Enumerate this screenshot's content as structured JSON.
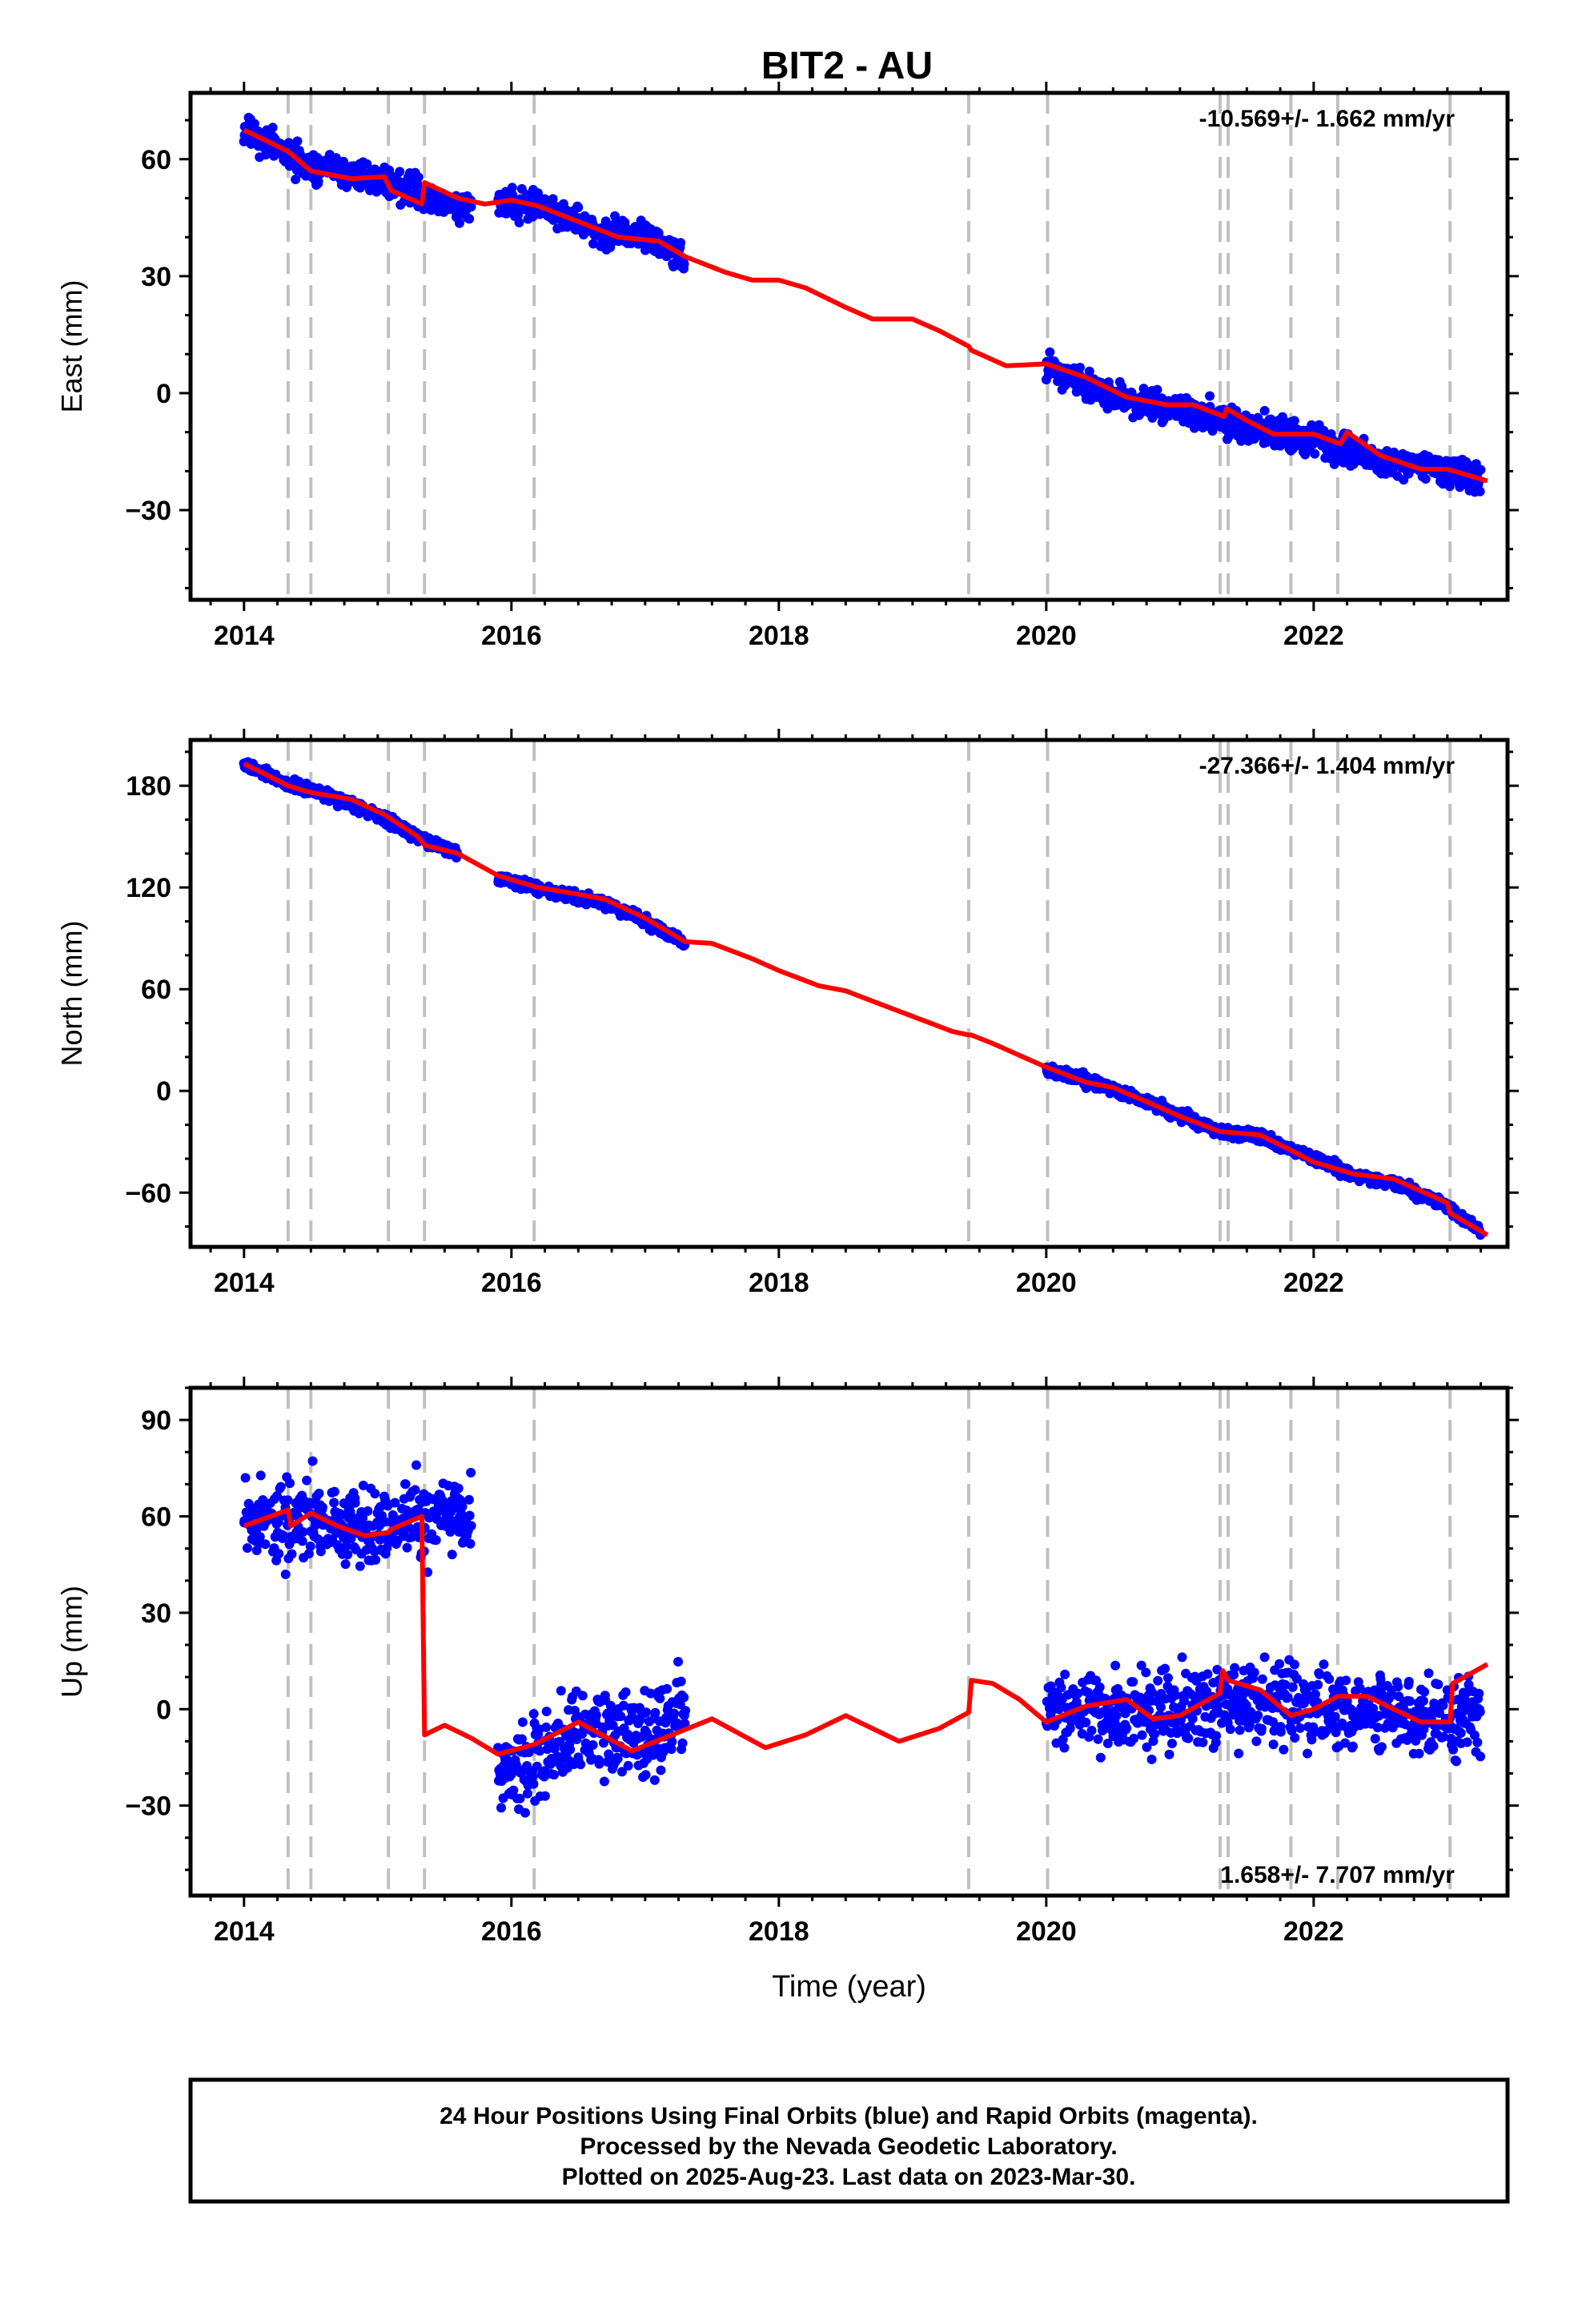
{
  "page": {
    "title": "BIT2 - AU",
    "footer_lines": [
      "24 Hour Positions Using Final Orbits (blue) and Rapid Orbits (magenta).",
      "Processed by the Nevada Geodetic Laboratory.",
      "Plotted on 2025-Aug-23. Last data on 2023-Mar-30."
    ]
  },
  "colors": {
    "observations": "#0000ff",
    "model": "#ff0000",
    "event_lines": "#c0c0c0",
    "frame": "#000000"
  },
  "chart_data": [
    {
      "type": "scatter",
      "ylabel": "East (mm)",
      "xlabel": "",
      "rate_label": "-10.569+/- 1.662 mm/yr",
      "rate_placement": "top-right",
      "xlim": [
        2013.6,
        2023.45
      ],
      "ylim": [
        -53,
        77
      ],
      "xticks": [
        2014,
        2016,
        2018,
        2020,
        2022
      ],
      "yticks": [
        -30,
        0,
        30,
        60
      ],
      "data_segments": [
        [
          2014.0,
          2015.7
        ],
        [
          2015.9,
          2017.3
        ],
        [
          2020.0,
          2023.25
        ]
      ],
      "series": [
        {
          "kind": "observations",
          "trend": [
            [
              2014.0,
              67.5
            ],
            [
              2014.5,
              58
            ],
            [
              2015.0,
              55
            ],
            [
              2015.35,
              51
            ],
            [
              2015.7,
              47
            ],
            [
              2015.9,
              49
            ],
            [
              2016.2,
              48
            ],
            [
              2016.7,
              41
            ],
            [
              2017.0,
              40
            ],
            [
              2017.3,
              35
            ],
            [
              2020.0,
              7
            ],
            [
              2020.5,
              -1
            ],
            [
              2021.0,
              -4
            ],
            [
              2021.5,
              -9
            ],
            [
              2022.0,
              -12
            ],
            [
              2022.5,
              -17
            ],
            [
              2023.25,
              -21
            ]
          ],
          "scatter_mm": 3.5
        },
        {
          "kind": "model",
          "points": [
            [
              2014.0,
              67.5
            ],
            [
              2014.33,
              62
            ],
            [
              2014.5,
              57
            ],
            [
              2014.8,
              55
            ],
            [
              2015.05,
              55.5
            ],
            [
              2015.1,
              52
            ],
            [
              2015.33,
              48.5
            ],
            [
              2015.35,
              54
            ],
            [
              2015.6,
              50
            ],
            [
              2015.8,
              48.5
            ],
            [
              2016.0,
              49.5
            ],
            [
              2016.2,
              48
            ],
            [
              2016.5,
              44
            ],
            [
              2016.8,
              40
            ],
            [
              2017.1,
              39
            ],
            [
              2017.3,
              35
            ],
            [
              2017.6,
              31
            ],
            [
              2017.8,
              29
            ],
            [
              2018.0,
              29
            ],
            [
              2018.2,
              27
            ],
            [
              2018.5,
              22
            ],
            [
              2018.7,
              19
            ],
            [
              2019.0,
              19
            ],
            [
              2019.2,
              16
            ],
            [
              2019.42,
              12
            ],
            [
              2019.44,
              11
            ],
            [
              2019.7,
              7
            ],
            [
              2020.0,
              7.5
            ],
            [
              2020.3,
              4
            ],
            [
              2020.6,
              -1
            ],
            [
              2020.9,
              -3
            ],
            [
              2021.1,
              -3
            ],
            [
              2021.33,
              -6
            ],
            [
              2021.35,
              -4
            ],
            [
              2021.5,
              -7
            ],
            [
              2021.7,
              -10.5
            ],
            [
              2022.0,
              -10.5
            ],
            [
              2022.2,
              -13
            ],
            [
              2022.25,
              -10
            ],
            [
              2022.5,
              -16
            ],
            [
              2022.8,
              -19.5
            ],
            [
              2023.0,
              -19.5
            ],
            [
              2023.3,
              -22.5
            ]
          ]
        }
      ],
      "event_lines": [
        2014.33,
        2014.5,
        2015.08,
        2015.35,
        2016.17,
        2019.42,
        2020.01,
        2021.3,
        2021.36,
        2021.83,
        2022.18,
        2023.02
      ]
    },
    {
      "type": "scatter",
      "ylabel": "North (mm)",
      "xlabel": "",
      "rate_label": "-27.366+/- 1.404 mm/yr",
      "rate_placement": "top-right",
      "xlim": [
        2013.6,
        2023.45
      ],
      "ylim": [
        -92,
        207
      ],
      "xticks": [
        2014,
        2016,
        2018,
        2020,
        2022
      ],
      "yticks": [
        -60,
        0,
        60,
        120,
        180
      ],
      "data_segments": [
        [
          2014.0,
          2015.6
        ],
        [
          2015.9,
          2017.3
        ],
        [
          2020.0,
          2023.25
        ]
      ],
      "series": [
        {
          "kind": "observations",
          "trend": [
            [
              2014.0,
              193
            ],
            [
              2014.3,
              182
            ],
            [
              2014.6,
              175
            ],
            [
              2015.0,
              163
            ],
            [
              2015.3,
              150
            ],
            [
              2015.6,
              140
            ],
            [
              2015.9,
              125
            ],
            [
              2016.3,
              117
            ],
            [
              2016.7,
              111
            ],
            [
              2017.0,
              100
            ],
            [
              2017.3,
              87
            ],
            [
              2020.0,
              13
            ],
            [
              2020.5,
              1
            ],
            [
              2021.0,
              -14
            ],
            [
              2021.3,
              -24
            ],
            [
              2021.6,
              -27
            ],
            [
              2022.0,
              -40
            ],
            [
              2022.3,
              -50
            ],
            [
              2022.6,
              -54
            ],
            [
              2023.0,
              -68
            ],
            [
              2023.25,
              -83
            ]
          ],
          "scatter_mm": 3
        },
        {
          "kind": "model",
          "points": [
            [
              2014.0,
              193
            ],
            [
              2014.33,
              180
            ],
            [
              2014.5,
              176
            ],
            [
              2014.8,
              172
            ],
            [
              2015.05,
              163
            ],
            [
              2015.3,
              150
            ],
            [
              2015.35,
              145
            ],
            [
              2015.6,
              140
            ],
            [
              2015.9,
              127
            ],
            [
              2016.2,
              120
            ],
            [
              2016.5,
              116
            ],
            [
              2016.7,
              113
            ],
            [
              2017.0,
              102
            ],
            [
              2017.3,
              88
            ],
            [
              2017.5,
              87
            ],
            [
              2017.8,
              78
            ],
            [
              2018.0,
              71
            ],
            [
              2018.3,
              62
            ],
            [
              2018.5,
              59
            ],
            [
              2018.8,
              50
            ],
            [
              2019.0,
              44
            ],
            [
              2019.3,
              35
            ],
            [
              2019.42,
              33
            ],
            [
              2019.44,
              33
            ],
            [
              2019.6,
              28
            ],
            [
              2020.0,
              14
            ],
            [
              2020.3,
              5
            ],
            [
              2020.5,
              2
            ],
            [
              2020.8,
              -8
            ],
            [
              2021.0,
              -15
            ],
            [
              2021.3,
              -24
            ],
            [
              2021.6,
              -26
            ],
            [
              2021.83,
              -35
            ],
            [
              2022.0,
              -42
            ],
            [
              2022.3,
              -49
            ],
            [
              2022.6,
              -52
            ],
            [
              2022.8,
              -59
            ],
            [
              2023.0,
              -66
            ],
            [
              2023.02,
              -72
            ],
            [
              2023.3,
              -85
            ]
          ]
        }
      ],
      "event_lines": [
        2014.33,
        2014.5,
        2015.08,
        2015.35,
        2016.17,
        2019.42,
        2020.01,
        2021.3,
        2021.36,
        2021.83,
        2022.18,
        2023.02
      ]
    },
    {
      "type": "scatter",
      "ylabel": "Up (mm)",
      "xlabel": "Time (year)",
      "rate_label": "1.658+/- 7.707 mm/yr",
      "rate_placement": "bottom-right",
      "xlim": [
        2013.6,
        2023.45
      ],
      "ylim": [
        -58,
        100
      ],
      "xticks": [
        2014,
        2016,
        2018,
        2020,
        2022
      ],
      "yticks": [
        -30,
        0,
        30,
        60,
        90
      ],
      "data_segments": [
        [
          2014.0,
          2015.7
        ],
        [
          2015.9,
          2017.3
        ],
        [
          2020.0,
          2023.25
        ]
      ],
      "series": [
        {
          "kind": "observations",
          "trend": [
            [
              2014.0,
              57
            ],
            [
              2014.5,
              60
            ],
            [
              2015.0,
              55
            ],
            [
              2015.3,
              60
            ],
            [
              2015.7,
              60
            ],
            [
              2015.9,
              -20
            ],
            [
              2016.2,
              -15
            ],
            [
              2016.6,
              -5
            ],
            [
              2017.0,
              -8
            ],
            [
              2017.3,
              -3
            ],
            [
              2020.0,
              0
            ],
            [
              2020.5,
              0
            ],
            [
              2021.0,
              -1
            ],
            [
              2021.4,
              3
            ],
            [
              2021.8,
              2
            ],
            [
              2022.2,
              0
            ],
            [
              2022.6,
              0
            ],
            [
              2023.0,
              -4
            ],
            [
              2023.25,
              0
            ]
          ],
          "scatter_mm": 12
        },
        {
          "kind": "model",
          "points": [
            [
              2014.0,
              57
            ],
            [
              2014.33,
              62
            ],
            [
              2014.35,
              57
            ],
            [
              2014.5,
              61
            ],
            [
              2014.7,
              57
            ],
            [
              2014.9,
              54
            ],
            [
              2015.08,
              55
            ],
            [
              2015.1,
              56
            ],
            [
              2015.33,
              60
            ],
            [
              2015.35,
              -8
            ],
            [
              2015.5,
              -5
            ],
            [
              2015.7,
              -9
            ],
            [
              2015.9,
              -14
            ],
            [
              2016.17,
              -11
            ],
            [
              2016.5,
              -4
            ],
            [
              2016.9,
              -13
            ],
            [
              2017.2,
              -8
            ],
            [
              2017.5,
              -3
            ],
            [
              2017.9,
              -12
            ],
            [
              2018.2,
              -8
            ],
            [
              2018.5,
              -2
            ],
            [
              2018.9,
              -10
            ],
            [
              2019.2,
              -6
            ],
            [
              2019.42,
              -1
            ],
            [
              2019.44,
              9
            ],
            [
              2019.6,
              8
            ],
            [
              2019.8,
              3
            ],
            [
              2020.0,
              -4
            ],
            [
              2020.3,
              1
            ],
            [
              2020.6,
              3
            ],
            [
              2020.8,
              -3
            ],
            [
              2021.0,
              -2
            ],
            [
              2021.3,
              5
            ],
            [
              2021.32,
              12
            ],
            [
              2021.36,
              9
            ],
            [
              2021.6,
              6
            ],
            [
              2021.83,
              -2
            ],
            [
              2022.0,
              0
            ],
            [
              2022.18,
              4
            ],
            [
              2022.4,
              4
            ],
            [
              2022.6,
              0
            ],
            [
              2022.8,
              -4
            ],
            [
              2023.02,
              -4
            ],
            [
              2023.04,
              8
            ],
            [
              2023.3,
              14
            ]
          ]
        }
      ],
      "event_lines": [
        2014.33,
        2014.5,
        2015.08,
        2015.35,
        2016.17,
        2019.42,
        2020.01,
        2021.3,
        2021.36,
        2021.83,
        2022.18,
        2023.02
      ]
    }
  ]
}
